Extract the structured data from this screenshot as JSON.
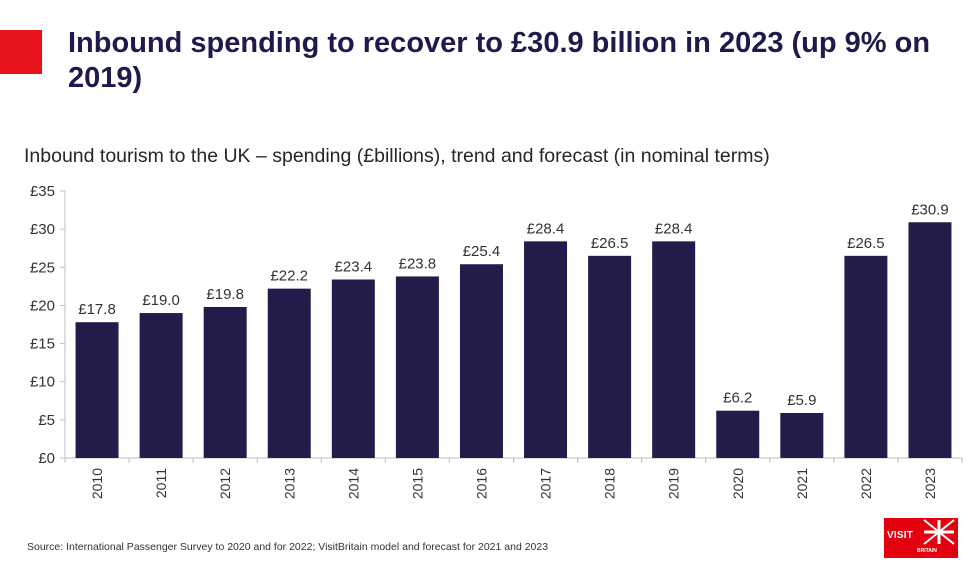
{
  "colors": {
    "accent": "#e8141b",
    "headline": "#1d1a4d",
    "bar": "#211c4a",
    "axis": "#bfbfbf",
    "logo": "#e3000f"
  },
  "header": {
    "accent_icon": "red-square-icon",
    "headline": "Inbound spending to recover to £30.9 billion in 2023 (up 9% on 2019)"
  },
  "footer": {
    "source": "Source: International Passenger Survey to 2020 and for 2022; VisitBritain model and forecast for 2021 and 2023",
    "logo_text": "VISIT",
    "logo_subtext": "BRITAIN",
    "logo_icon": "union-flag-icon"
  },
  "chart_data": {
    "type": "bar",
    "title": "Inbound tourism to the UK – spending (£billions), trend and forecast (in nominal terms)",
    "xlabel": "",
    "ylabel": "",
    "categories": [
      "2010",
      "2011",
      "2012",
      "2013",
      "2014",
      "2015",
      "2016",
      "2017",
      "2018",
      "2019",
      "2020",
      "2021",
      "2022",
      "2023"
    ],
    "values": [
      17.8,
      19.0,
      19.8,
      22.2,
      23.4,
      23.8,
      25.4,
      28.4,
      26.5,
      28.4,
      6.2,
      5.9,
      26.5,
      30.9
    ],
    "value_labels": [
      "£17.8",
      "£19.0",
      "£19.8",
      "£22.2",
      "£23.4",
      "£23.8",
      "£25.4",
      "£28.4",
      "£26.5",
      "£28.4",
      "£6.2",
      "£5.9",
      "£26.5",
      "£30.9"
    ],
    "ylim": [
      0,
      35
    ],
    "yticks": [
      0,
      5,
      10,
      15,
      20,
      25,
      30,
      35
    ],
    "ytick_labels": [
      "£0",
      "£5",
      "£10",
      "£15",
      "£20",
      "£25",
      "£30",
      "£35"
    ],
    "xtick_rotation": "vertical",
    "grid": false,
    "legend": "none"
  }
}
